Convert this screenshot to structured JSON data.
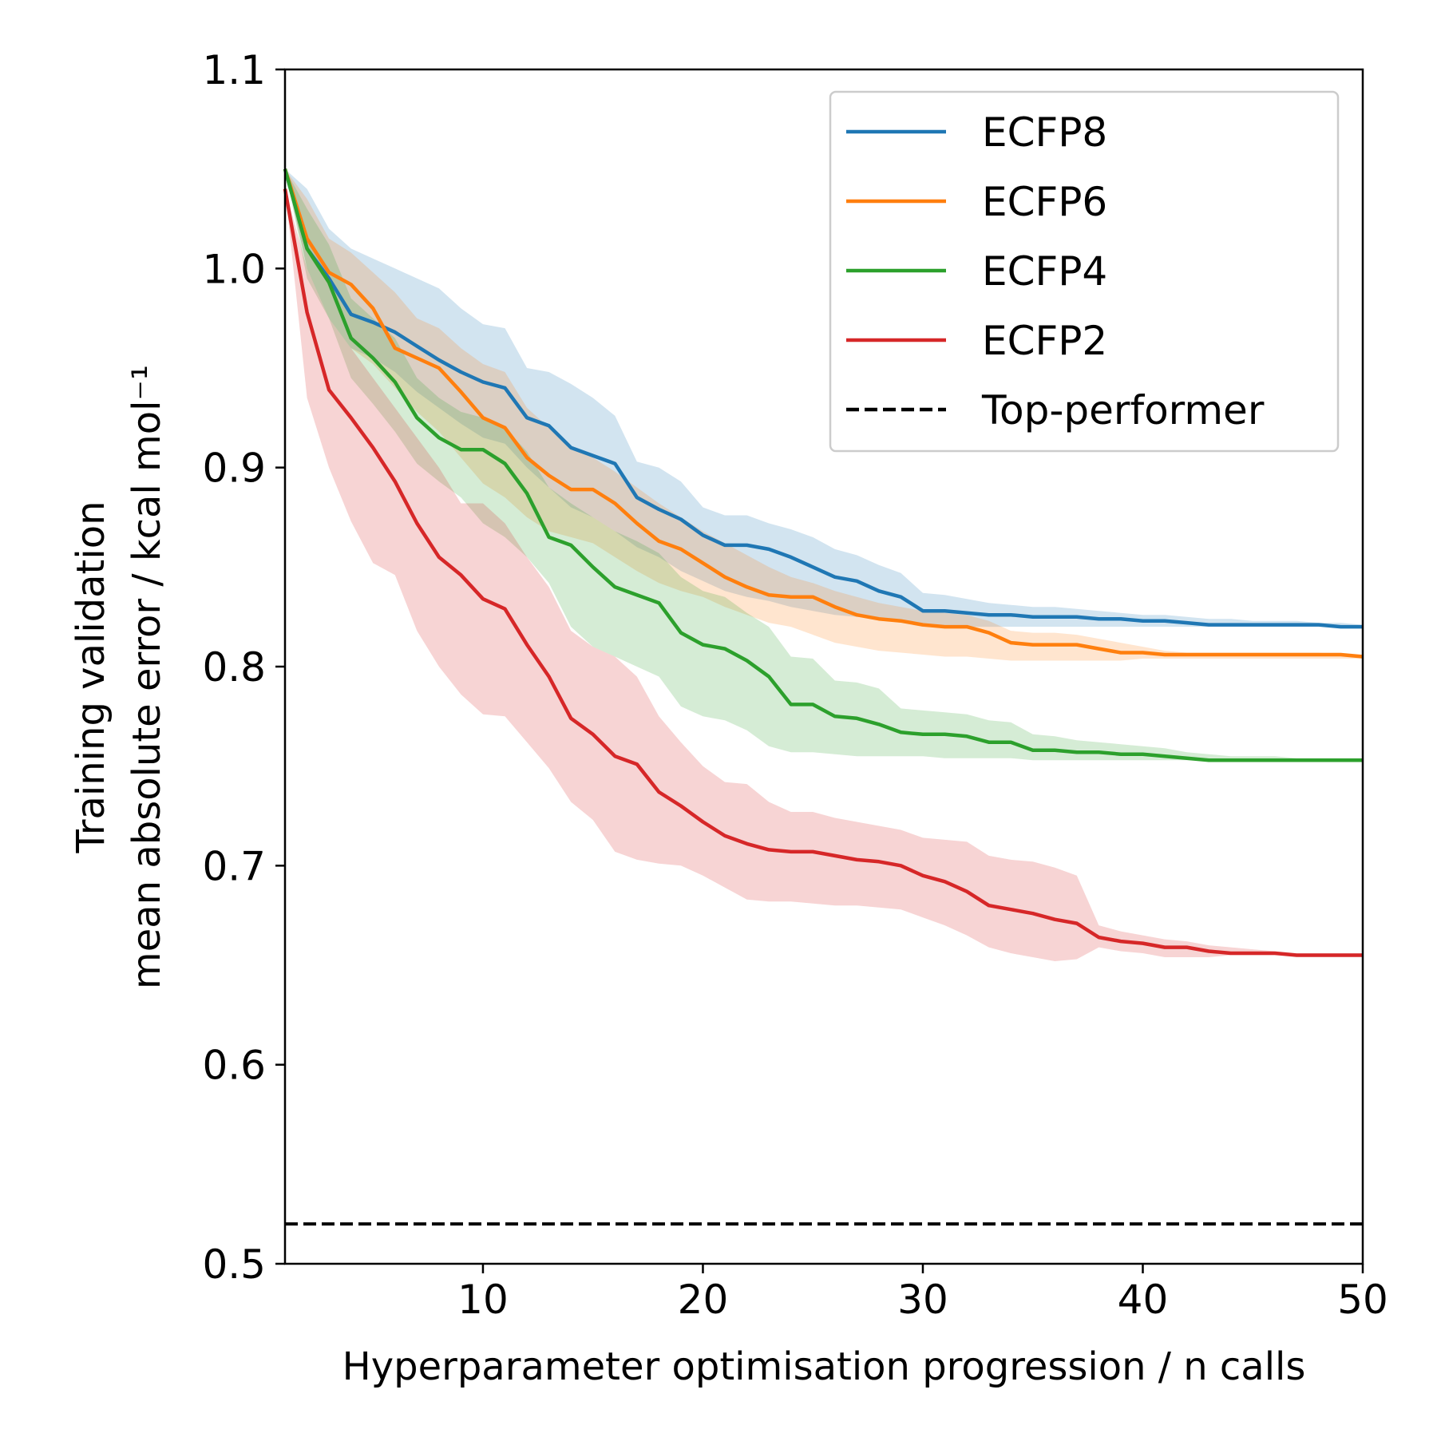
{
  "chart_data": {
    "type": "line",
    "xlabel": "Hyperparameter optimisation progression / n calls",
    "ylabel": [
      "Training validation",
      "mean absolute error / kcal mol⁻¹"
    ],
    "xlim": [
      1,
      50
    ],
    "ylim": [
      0.5,
      1.1
    ],
    "xticks": [
      10,
      20,
      30,
      40,
      50
    ],
    "yticks": [
      0.5,
      0.6,
      0.7,
      0.8,
      0.9,
      1.0,
      1.1
    ],
    "xtick_labels": [
      "10",
      "20",
      "30",
      "40",
      "50"
    ],
    "ytick_labels": [
      "0.5",
      "0.6",
      "0.7",
      "0.8",
      "0.9",
      "1.0",
      "1.1"
    ],
    "grid": false,
    "legend_position": "top-right",
    "x": [
      1,
      2,
      3,
      4,
      5,
      6,
      7,
      8,
      9,
      10,
      11,
      12,
      13,
      14,
      15,
      16,
      17,
      18,
      19,
      20,
      21,
      22,
      23,
      24,
      25,
      26,
      27,
      28,
      29,
      30,
      31,
      32,
      33,
      34,
      35,
      36,
      37,
      38,
      39,
      40,
      41,
      42,
      43,
      44,
      45,
      46,
      47,
      48,
      49,
      50
    ],
    "series": [
      {
        "name": "ECFP8",
        "color": "#1f77b4",
        "values": [
          1.05,
          1.01,
          0.995,
          0.977,
          0.973,
          0.968,
          0.961,
          0.954,
          0.948,
          0.943,
          0.94,
          0.925,
          0.921,
          0.91,
          0.906,
          0.902,
          0.885,
          0.879,
          0.874,
          0.866,
          0.861,
          0.861,
          0.859,
          0.855,
          0.85,
          0.845,
          0.843,
          0.838,
          0.835,
          0.828,
          0.828,
          0.827,
          0.826,
          0.826,
          0.825,
          0.825,
          0.825,
          0.824,
          0.824,
          0.823,
          0.823,
          0.822,
          0.821,
          0.821,
          0.821,
          0.821,
          0.821,
          0.821,
          0.82,
          0.82
        ],
        "lower": [
          1.05,
          1.0,
          0.975,
          0.96,
          0.955,
          0.948,
          0.938,
          0.93,
          0.922,
          0.915,
          0.912,
          0.9,
          0.89,
          0.88,
          0.875,
          0.868,
          0.86,
          0.855,
          0.848,
          0.843,
          0.838,
          0.835,
          0.833,
          0.83,
          0.828,
          0.826,
          0.825,
          0.824,
          0.822,
          0.82,
          0.82,
          0.82,
          0.82,
          0.82,
          0.82,
          0.82,
          0.82,
          0.82,
          0.82,
          0.82,
          0.82,
          0.82,
          0.82,
          0.82,
          0.82,
          0.82,
          0.82,
          0.82,
          0.82,
          0.82
        ],
        "upper": [
          1.05,
          1.04,
          1.02,
          1.01,
          1.005,
          1.0,
          0.995,
          0.99,
          0.98,
          0.972,
          0.97,
          0.95,
          0.948,
          0.942,
          0.935,
          0.926,
          0.903,
          0.9,
          0.893,
          0.88,
          0.876,
          0.876,
          0.872,
          0.869,
          0.865,
          0.859,
          0.856,
          0.851,
          0.847,
          0.837,
          0.836,
          0.834,
          0.832,
          0.831,
          0.83,
          0.83,
          0.829,
          0.828,
          0.827,
          0.826,
          0.826,
          0.825,
          0.824,
          0.824,
          0.823,
          0.823,
          0.823,
          0.822,
          0.822,
          0.821
        ]
      },
      {
        "name": "ECFP6",
        "color": "#ff7f0e",
        "values": [
          1.05,
          1.015,
          0.998,
          0.992,
          0.98,
          0.96,
          0.955,
          0.95,
          0.938,
          0.925,
          0.92,
          0.905,
          0.896,
          0.889,
          0.889,
          0.882,
          0.872,
          0.863,
          0.859,
          0.852,
          0.845,
          0.84,
          0.836,
          0.835,
          0.835,
          0.83,
          0.826,
          0.824,
          0.823,
          0.821,
          0.82,
          0.82,
          0.817,
          0.812,
          0.811,
          0.811,
          0.811,
          0.809,
          0.807,
          0.807,
          0.806,
          0.806,
          0.806,
          0.806,
          0.806,
          0.806,
          0.806,
          0.806,
          0.806,
          0.805
        ],
        "lower": [
          1.05,
          1.0,
          0.975,
          0.96,
          0.952,
          0.94,
          0.928,
          0.918,
          0.905,
          0.892,
          0.885,
          0.875,
          0.868,
          0.865,
          0.862,
          0.855,
          0.848,
          0.842,
          0.838,
          0.835,
          0.83,
          0.826,
          0.822,
          0.82,
          0.816,
          0.812,
          0.81,
          0.808,
          0.807,
          0.806,
          0.805,
          0.805,
          0.804,
          0.803,
          0.803,
          0.803,
          0.803,
          0.803,
          0.803,
          0.804,
          0.804,
          0.804,
          0.804,
          0.804,
          0.804,
          0.804,
          0.804,
          0.804,
          0.804,
          0.804
        ],
        "upper": [
          1.05,
          1.035,
          1.015,
          1.008,
          0.998,
          0.988,
          0.975,
          0.97,
          0.96,
          0.952,
          0.948,
          0.93,
          0.92,
          0.91,
          0.905,
          0.898,
          0.89,
          0.882,
          0.875,
          0.868,
          0.862,
          0.856,
          0.85,
          0.845,
          0.842,
          0.838,
          0.835,
          0.832,
          0.83,
          0.828,
          0.827,
          0.826,
          0.823,
          0.818,
          0.817,
          0.817,
          0.816,
          0.814,
          0.812,
          0.81,
          0.808,
          0.807,
          0.807,
          0.807,
          0.807,
          0.807,
          0.807,
          0.807,
          0.806,
          0.806
        ]
      },
      {
        "name": "ECFP4",
        "color": "#2ca02c",
        "values": [
          1.05,
          1.01,
          0.993,
          0.965,
          0.955,
          0.943,
          0.925,
          0.915,
          0.909,
          0.909,
          0.902,
          0.887,
          0.865,
          0.861,
          0.85,
          0.84,
          0.836,
          0.832,
          0.817,
          0.811,
          0.809,
          0.803,
          0.795,
          0.781,
          0.781,
          0.775,
          0.774,
          0.771,
          0.767,
          0.766,
          0.766,
          0.765,
          0.762,
          0.762,
          0.758,
          0.758,
          0.757,
          0.757,
          0.756,
          0.756,
          0.755,
          0.754,
          0.753,
          0.753,
          0.753,
          0.753,
          0.753,
          0.753,
          0.753,
          0.753
        ],
        "lower": [
          1.05,
          0.995,
          0.975,
          0.945,
          0.932,
          0.918,
          0.902,
          0.893,
          0.885,
          0.872,
          0.865,
          0.855,
          0.842,
          0.82,
          0.81,
          0.805,
          0.8,
          0.795,
          0.78,
          0.775,
          0.773,
          0.768,
          0.76,
          0.757,
          0.757,
          0.756,
          0.755,
          0.755,
          0.755,
          0.755,
          0.754,
          0.754,
          0.754,
          0.754,
          0.753,
          0.753,
          0.753,
          0.753,
          0.753,
          0.753,
          0.753,
          0.753,
          0.753,
          0.753,
          0.753,
          0.753,
          0.753,
          0.753,
          0.753,
          0.753
        ],
        "upper": [
          1.05,
          1.03,
          1.012,
          0.985,
          0.975,
          0.965,
          0.945,
          0.935,
          0.928,
          0.925,
          0.92,
          0.908,
          0.89,
          0.882,
          0.875,
          0.868,
          0.863,
          0.857,
          0.845,
          0.838,
          0.835,
          0.827,
          0.82,
          0.805,
          0.804,
          0.793,
          0.792,
          0.789,
          0.779,
          0.778,
          0.777,
          0.776,
          0.773,
          0.772,
          0.766,
          0.765,
          0.763,
          0.762,
          0.761,
          0.76,
          0.759,
          0.757,
          0.756,
          0.755,
          0.755,
          0.755,
          0.754,
          0.754,
          0.754,
          0.754
        ]
      },
      {
        "name": "ECFP2",
        "color": "#d62728",
        "values": [
          1.04,
          0.978,
          0.939,
          0.925,
          0.91,
          0.893,
          0.872,
          0.855,
          0.846,
          0.834,
          0.829,
          0.811,
          0.795,
          0.774,
          0.766,
          0.755,
          0.751,
          0.737,
          0.73,
          0.722,
          0.715,
          0.711,
          0.708,
          0.707,
          0.707,
          0.705,
          0.703,
          0.702,
          0.7,
          0.695,
          0.692,
          0.687,
          0.68,
          0.678,
          0.676,
          0.673,
          0.671,
          0.664,
          0.662,
          0.661,
          0.659,
          0.659,
          0.657,
          0.656,
          0.656,
          0.656,
          0.655,
          0.655,
          0.655,
          0.655
        ],
        "lower": [
          1.04,
          0.935,
          0.9,
          0.873,
          0.852,
          0.846,
          0.818,
          0.8,
          0.786,
          0.776,
          0.775,
          0.762,
          0.749,
          0.732,
          0.723,
          0.707,
          0.703,
          0.701,
          0.7,
          0.695,
          0.689,
          0.683,
          0.682,
          0.682,
          0.681,
          0.68,
          0.68,
          0.679,
          0.678,
          0.674,
          0.67,
          0.665,
          0.659,
          0.656,
          0.654,
          0.652,
          0.653,
          0.659,
          0.657,
          0.656,
          0.654,
          0.654,
          0.654,
          0.655,
          0.655,
          0.655,
          0.655,
          0.655,
          0.655,
          0.655
        ],
        "upper": [
          1.04,
          1.0,
          0.975,
          0.96,
          0.945,
          0.93,
          0.915,
          0.9,
          0.882,
          0.882,
          0.872,
          0.855,
          0.84,
          0.818,
          0.81,
          0.805,
          0.795,
          0.775,
          0.762,
          0.75,
          0.742,
          0.741,
          0.732,
          0.727,
          0.727,
          0.724,
          0.722,
          0.72,
          0.718,
          0.714,
          0.713,
          0.712,
          0.705,
          0.703,
          0.702,
          0.699,
          0.695,
          0.67,
          0.667,
          0.665,
          0.663,
          0.662,
          0.66,
          0.659,
          0.658,
          0.657,
          0.656,
          0.656,
          0.656,
          0.656
        ]
      }
    ],
    "reference_lines": [
      {
        "name": "Top-performer",
        "y": 0.52,
        "color": "#000000",
        "style": "dashed"
      }
    ]
  }
}
